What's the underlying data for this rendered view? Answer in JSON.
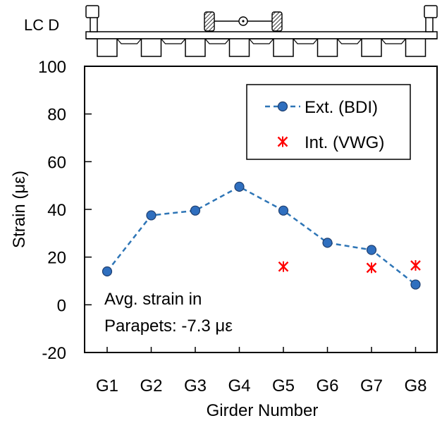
{
  "chart_data": {
    "type": "line",
    "title": "",
    "load_case_label": "LC D",
    "xlabel": "Girder Number",
    "ylabel": "Strain (με)",
    "categories": [
      "G1",
      "G2",
      "G3",
      "G4",
      "G5",
      "G6",
      "G7",
      "G8"
    ],
    "ylim": [
      -20,
      100
    ],
    "yticks": [
      -20,
      0,
      20,
      40,
      60,
      80,
      100
    ],
    "grid": false,
    "legend_position": "top-right",
    "series": [
      {
        "name": "Ext. (BDI)",
        "style": "dashed-line-circle-markers",
        "color": "#2E75B6",
        "marker_color": "#2F6FBF",
        "points": [
          {
            "x": "G1",
            "y": 14
          },
          {
            "x": "G2",
            "y": 37.5
          },
          {
            "x": "G3",
            "y": 39.5
          },
          {
            "x": "G4",
            "y": 49.5
          },
          {
            "x": "G5",
            "y": 39.5
          },
          {
            "x": "G6",
            "y": 26
          },
          {
            "x": "G7",
            "y": 23
          },
          {
            "x": "G8",
            "y": 8.5
          }
        ]
      },
      {
        "name": "Int. (VWG)",
        "style": "star-markers",
        "color": "#FF0000",
        "points": [
          {
            "x": "G5",
            "y": 16
          },
          {
            "x": "G7",
            "y": 15.5
          },
          {
            "x": "G8",
            "y": 16.5
          }
        ]
      }
    ],
    "annotation": {
      "line1": "Avg. strain in",
      "line2": "Parapets: -7.3 με"
    }
  }
}
